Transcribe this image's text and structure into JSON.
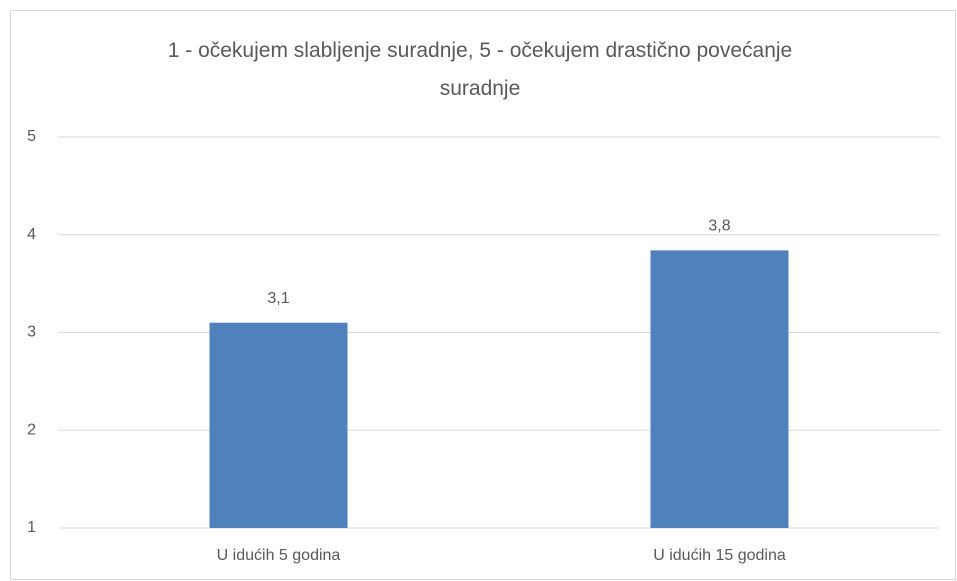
{
  "chart_data": {
    "type": "bar",
    "title": "1 - očekujem slabljenje suradnje, 5 - očekujem drastično povećanje suradnje",
    "categories": [
      "U idućih 5 godina",
      "U idućih 15 godina"
    ],
    "values": [
      3.1,
      3.84
    ],
    "value_labels": [
      "3,1",
      "3,8"
    ],
    "color": "#4f81bd",
    "ylim": [
      1,
      5
    ],
    "yticks": [
      1,
      2,
      3,
      4,
      5
    ],
    "grid": true
  }
}
